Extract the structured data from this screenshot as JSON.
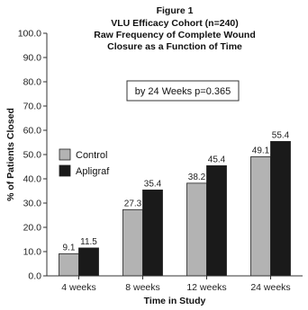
{
  "chart_data": {
    "type": "bar",
    "title_lines": [
      "Figure 1",
      "VLU Efficacy Cohort (n=240)",
      "Raw Frequency of Complete Wound",
      "Closure as a Function of Time"
    ],
    "annotation": "by 24 Weeks p=0.365",
    "categories": [
      "4 weeks",
      "8 weeks",
      "12 weeks",
      "24 weeks"
    ],
    "series": [
      {
        "name": "Control",
        "color": "#b3b3b3",
        "values": [
          9.1,
          27.3,
          38.2,
          49.1
        ]
      },
      {
        "name": "Apligraf",
        "color": "#1a1a1a",
        "values": [
          11.5,
          35.4,
          45.4,
          55.4
        ]
      }
    ],
    "data_labels": [
      [
        "9.1",
        "27.3",
        "38.2",
        "49.1"
      ],
      [
        "11.5",
        "35.4",
        "45.4",
        "55.4"
      ]
    ],
    "xlabel": "Time in Study",
    "ylabel": "% of Patients Closed",
    "ylim": [
      0,
      100
    ],
    "yticks": [
      "0.0",
      "10.0",
      "20.0",
      "30.0",
      "40.0",
      "50.0",
      "60.0",
      "70.0",
      "80.0",
      "90.0",
      "100.0"
    ],
    "legend_position": "left-middle",
    "grid": false
  }
}
